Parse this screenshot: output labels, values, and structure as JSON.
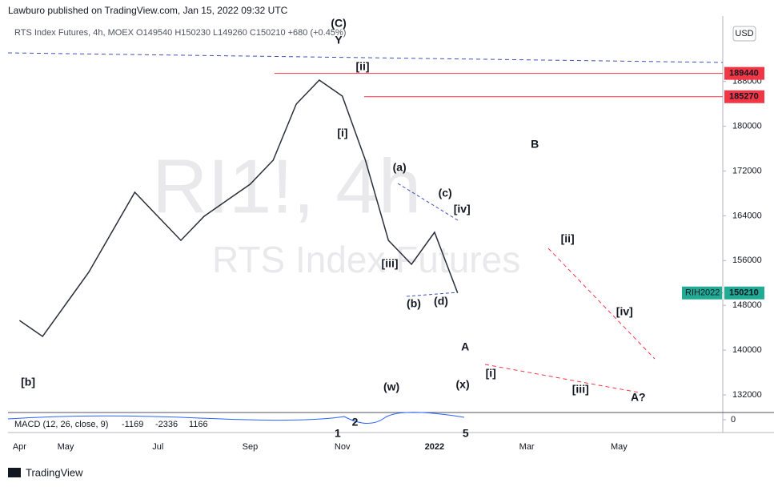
{
  "header": {
    "publisher": "Lawburo published on TradingView.com, Jan 15, 2022 09:32 UTC",
    "legend": "RTS Index Futures, 4h, MOEX  O149540  H150230  L149260  C150210  +680 (+0.45%)",
    "currency": "USD",
    "brand": "TradingView"
  },
  "chart_data": {
    "type": "line",
    "color": "#2a2e39",
    "watermark": {
      "symbol": "RI1!, 4h",
      "name": "RTS Index Futures"
    },
    "categories": [
      "Apr",
      null,
      "May",
      null,
      null,
      null,
      "Jul",
      null,
      null,
      null,
      "Sep",
      null,
      null,
      null,
      "Nov",
      null,
      null,
      null,
      "2022",
      null,
      null,
      null,
      "Mar",
      null,
      null,
      null,
      "May",
      null,
      null,
      null,
      null
    ],
    "values": [
      145300,
      142450,
      148170,
      153900,
      161050,
      168200,
      163900,
      159600,
      163900,
      166770,
      169640,
      173930,
      183950,
      188240,
      185380,
      173930,
      159600,
      155330,
      161050,
      150210,
      null,
      null,
      null,
      null,
      null,
      null,
      null,
      null,
      null,
      null,
      null
    ],
    "ylim": [
      128850,
      199690
    ],
    "yticks": [
      132000,
      140000,
      148000,
      156000,
      164000,
      172000,
      180000,
      188000
    ],
    "levels": [
      {
        "value": 189440,
        "color": "#f23645"
      },
      {
        "value": 185270,
        "color": "#f23645"
      }
    ],
    "last": {
      "symbol": "RIH2022",
      "value": 150210,
      "color": "#22ab94"
    },
    "annotations": [
      {
        "text": "(C)",
        "x": 13.84,
        "y": 198260,
        "color": "#2962ff"
      },
      {
        "text": "Y",
        "x": 13.84,
        "y": 195250,
        "color": "#2962ff"
      },
      {
        "text": "[ii]",
        "x": 14.88,
        "y": 190530,
        "color": "#2962ff"
      },
      {
        "text": "[i]",
        "x": 14.01,
        "y": 178650,
        "color": "#2962ff"
      },
      {
        "text": "(a)",
        "x": 16.48,
        "y": 172500,
        "color": "#2962ff"
      },
      {
        "text": "(c)",
        "x": 18.46,
        "y": 167920,
        "color": "#2962ff"
      },
      {
        "text": "[iv]",
        "x": 19.19,
        "y": 165060,
        "color": "#2962ff"
      },
      {
        "text": "[iii]",
        "x": 16.06,
        "y": 155330,
        "color": "#2962ff"
      },
      {
        "text": "(b)",
        "x": 17.1,
        "y": 148170,
        "color": "#2962ff"
      },
      {
        "text": "(d)",
        "x": 18.28,
        "y": 148600,
        "color": "#2962ff"
      },
      {
        "text": "A",
        "x": 19.33,
        "y": 140440,
        "color": "#2962ff"
      },
      {
        "text": "B",
        "x": 22.35,
        "y": 176650,
        "color": "#2962ff"
      },
      {
        "text": "[b]",
        "x": 0.37,
        "y": 134150,
        "color": "#2962ff"
      },
      {
        "text": "(w)",
        "x": 16.13,
        "y": 133290,
        "color": "#f23645"
      },
      {
        "text": "(x)",
        "x": 19.22,
        "y": 133720,
        "color": "#f23645"
      },
      {
        "text": "[i]",
        "x": 20.44,
        "y": 135720,
        "color": "#f23645"
      },
      {
        "text": "[ii]",
        "x": 23.77,
        "y": 159760,
        "color": "#f23645"
      },
      {
        "text": "[iv]",
        "x": 26.24,
        "y": 146740,
        "color": "#f23645"
      },
      {
        "text": "[iii]",
        "x": 24.33,
        "y": 132860,
        "color": "#f23645"
      },
      {
        "text": "A?",
        "x": 26.83,
        "y": 131430,
        "color": "#f23645"
      }
    ],
    "macd": {
      "title": "MACD (12, 26, close, 9)",
      "values": [
        "-1169",
        "-2336",
        "1166"
      ],
      "colors": [
        "#f23645",
        "#2962ff",
        "#ff6d00"
      ],
      "zero": 0,
      "labels": [
        {
          "text": "1",
          "x": 13.8
        },
        {
          "text": "2",
          "x": 14.55
        },
        {
          "text": "5",
          "x": 19.35
        }
      ]
    }
  }
}
